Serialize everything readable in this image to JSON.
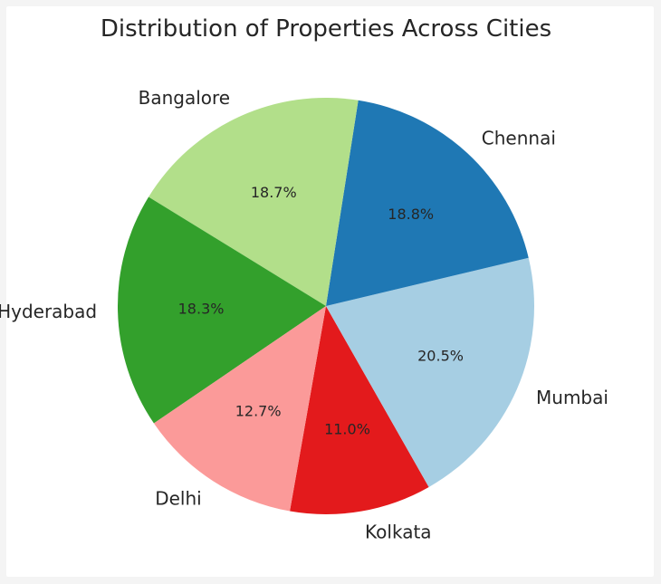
{
  "chart_data": {
    "type": "pie",
    "title": "Distribution of Properties Across Cities",
    "start_angle_deg": 260,
    "direction": "counterclockwise",
    "legend": "none",
    "slices": [
      {
        "label": "Kolkata",
        "value": 11.0,
        "pct_label": "11.0%",
        "color": "#e31a1c"
      },
      {
        "label": "Mumbai",
        "value": 20.5,
        "pct_label": "20.5%",
        "color": "#a6cee3"
      },
      {
        "label": "Chennai",
        "value": 18.8,
        "pct_label": "18.8%",
        "color": "#1f78b4"
      },
      {
        "label": "Bangalore",
        "value": 18.7,
        "pct_label": "18.7%",
        "color": "#b2df8a"
      },
      {
        "label": "Hyderabad",
        "value": 18.3,
        "pct_label": "18.3%",
        "color": "#33a02c"
      },
      {
        "label": "Delhi",
        "value": 12.7,
        "pct_label": "12.7%",
        "color": "#fb9a99"
      }
    ]
  }
}
